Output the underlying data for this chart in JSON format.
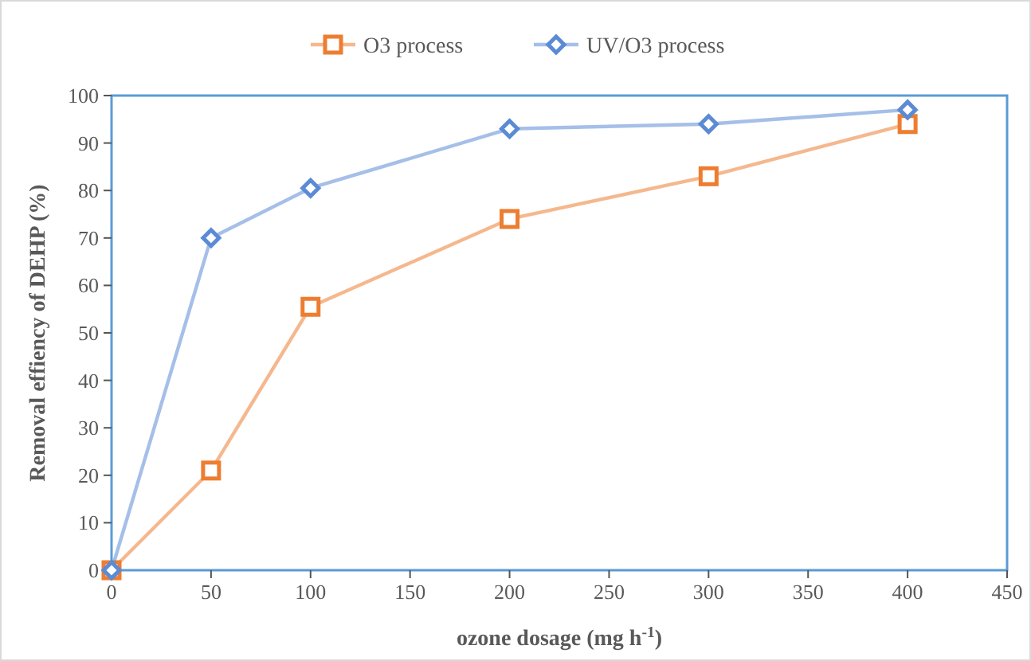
{
  "chart_data": {
    "type": "line",
    "xlabel": "ozone dosage (mg h$^{-1}$)",
    "ylabel": "Removal effiency of DEHP (%)",
    "x": [
      0,
      50,
      100,
      200,
      300,
      400
    ],
    "series": [
      {
        "name": "O3 process",
        "color": "#ed7d31",
        "marker": "square",
        "values": [
          0,
          21,
          55.5,
          74,
          83,
          94
        ]
      },
      {
        "name": "UV/O3 process",
        "color": "#5b8bd5",
        "marker": "diamond",
        "values": [
          0,
          70,
          80.5,
          93,
          94,
          97
        ]
      }
    ],
    "xlim": [
      0,
      450
    ],
    "xticks": [
      0,
      50,
      100,
      150,
      200,
      250,
      300,
      350,
      400,
      450
    ],
    "ylim": [
      0,
      100
    ],
    "yticks": [
      0,
      10,
      20,
      30,
      40,
      50,
      60,
      70,
      80,
      90,
      100
    ],
    "legend": "top",
    "grid": false,
    "line_style": "solid"
  }
}
